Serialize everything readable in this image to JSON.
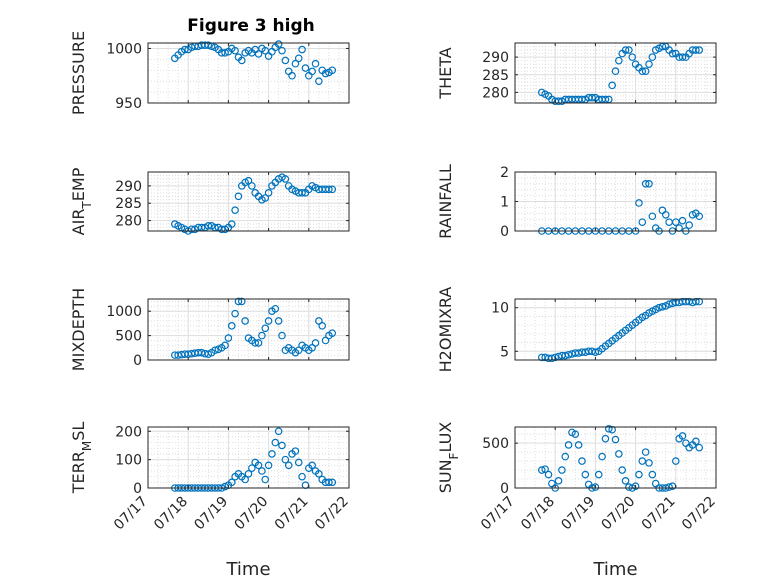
{
  "figure": {
    "title": "Figure 3 high",
    "marker_color": "#0072BD"
  },
  "chart_data": [
    {
      "type": "scatter",
      "ylabel": "PRESSURE",
      "xlabel": "",
      "ylim": [
        950,
        1005
      ],
      "yticks": [
        950,
        1000
      ],
      "xlim": [
        "07/17",
        "07/22"
      ],
      "x": [
        "07/17 16:00",
        "07/17 18:00",
        "07/17 20:00",
        "07/17 22:00",
        "07/18 00:00",
        "07/18 02:00",
        "07/18 04:00",
        "07/18 06:00",
        "07/18 08:00",
        "07/18 10:00",
        "07/18 12:00",
        "07/18 14:00",
        "07/18 16:00",
        "07/18 18:00",
        "07/18 20:00",
        "07/18 22:00",
        "07/19 00:00",
        "07/19 02:00",
        "07/19 04:00",
        "07/19 06:00",
        "07/19 08:00",
        "07/19 10:00",
        "07/19 12:00",
        "07/19 14:00",
        "07/19 16:00",
        "07/19 18:00",
        "07/19 20:00",
        "07/19 22:00",
        "07/20 00:00",
        "07/20 02:00",
        "07/20 04:00",
        "07/20 06:00",
        "07/20 08:00",
        "07/20 10:00",
        "07/20 12:00",
        "07/20 14:00",
        "07/20 16:00",
        "07/20 18:00",
        "07/20 20:00",
        "07/20 22:00",
        "07/21 00:00",
        "07/21 02:00",
        "07/21 04:00",
        "07/21 06:00",
        "07/21 08:00",
        "07/21 10:00",
        "07/21 12:00",
        "07/21 14:00"
      ],
      "y": [
        991,
        994,
        997,
        999,
        999,
        1001,
        1002,
        1002,
        1003,
        1003,
        1003,
        1002,
        1001,
        999,
        996,
        996,
        997,
        1000,
        998,
        992,
        989,
        996,
        998,
        996,
        999,
        995,
        1000,
        998,
        993,
        997,
        1001,
        1004,
        998,
        989,
        979,
        975,
        986,
        991,
        999,
        982,
        975,
        979,
        986,
        970,
        980,
        977,
        978,
        980
      ]
    },
    {
      "type": "scatter",
      "ylabel": "THETA",
      "xlabel": "",
      "ylim": [
        277,
        294
      ],
      "yticks": [
        280,
        285,
        290
      ],
      "xlim": [
        "07/17",
        "07/22"
      ],
      "x": [
        "07/17 16:00",
        "07/17 18:00",
        "07/17 20:00",
        "07/17 22:00",
        "07/18 00:00",
        "07/18 02:00",
        "07/18 04:00",
        "07/18 06:00",
        "07/18 08:00",
        "07/18 10:00",
        "07/18 12:00",
        "07/18 14:00",
        "07/18 16:00",
        "07/18 18:00",
        "07/18 20:00",
        "07/18 22:00",
        "07/19 00:00",
        "07/19 02:00",
        "07/19 04:00",
        "07/19 06:00",
        "07/19 08:00",
        "07/19 10:00",
        "07/19 12:00",
        "07/19 14:00",
        "07/19 16:00",
        "07/19 18:00",
        "07/19 20:00",
        "07/19 22:00",
        "07/20 00:00",
        "07/20 02:00",
        "07/20 04:00",
        "07/20 06:00",
        "07/20 08:00",
        "07/20 10:00",
        "07/20 12:00",
        "07/20 14:00",
        "07/20 16:00",
        "07/20 18:00",
        "07/20 20:00",
        "07/20 22:00",
        "07/21 00:00",
        "07/21 02:00",
        "07/21 04:00",
        "07/21 06:00",
        "07/21 08:00",
        "07/21 10:00",
        "07/21 12:00",
        "07/21 14:00"
      ],
      "y": [
        280,
        279.5,
        279,
        278,
        277.5,
        277.5,
        277.5,
        278,
        278,
        278,
        278,
        278,
        278,
        278,
        278.5,
        278.5,
        278.5,
        278,
        278,
        278,
        278,
        282,
        286,
        289,
        291,
        292,
        292,
        290,
        288,
        287,
        286,
        286,
        288,
        290,
        292,
        292.5,
        293,
        293,
        292,
        291,
        291,
        290,
        290,
        290,
        291,
        292,
        292,
        292
      ]
    },
    {
      "type": "scatter",
      "ylabel": "AIR_TEMP",
      "xlabel": "",
      "ylim": [
        277,
        294
      ],
      "yticks": [
        280,
        285,
        290
      ],
      "xlim": [
        "07/17",
        "07/22"
      ],
      "x": [
        "07/17 16:00",
        "07/17 18:00",
        "07/17 20:00",
        "07/17 22:00",
        "07/18 00:00",
        "07/18 02:00",
        "07/18 04:00",
        "07/18 06:00",
        "07/18 08:00",
        "07/18 10:00",
        "07/18 12:00",
        "07/18 14:00",
        "07/18 16:00",
        "07/18 18:00",
        "07/18 20:00",
        "07/18 22:00",
        "07/19 00:00",
        "07/19 02:00",
        "07/19 04:00",
        "07/19 06:00",
        "07/19 08:00",
        "07/19 10:00",
        "07/19 12:00",
        "07/19 14:00",
        "07/19 16:00",
        "07/19 18:00",
        "07/19 20:00",
        "07/19 22:00",
        "07/20 00:00",
        "07/20 02:00",
        "07/20 04:00",
        "07/20 06:00",
        "07/20 08:00",
        "07/20 10:00",
        "07/20 12:00",
        "07/20 14:00",
        "07/20 16:00",
        "07/20 18:00",
        "07/20 20:00",
        "07/20 22:00",
        "07/21 00:00",
        "07/21 02:00",
        "07/21 04:00",
        "07/21 06:00",
        "07/21 08:00",
        "07/21 10:00",
        "07/21 12:00",
        "07/21 14:00"
      ],
      "y": [
        279,
        278.5,
        278,
        277.5,
        277,
        277.5,
        277.5,
        278,
        278,
        278,
        278.5,
        278.5,
        278,
        278,
        277.5,
        277.5,
        278,
        279,
        283,
        287,
        290,
        291,
        291.5,
        290,
        288,
        287,
        286,
        286.5,
        288,
        290,
        291,
        292,
        292.5,
        292,
        290,
        289,
        288.5,
        288,
        288,
        288,
        289,
        290,
        289.5,
        289,
        289,
        289,
        289,
        289
      ]
    },
    {
      "type": "scatter",
      "ylabel": "RAINFALL",
      "xlabel": "",
      "ylim": [
        0,
        2
      ],
      "yticks": [
        0,
        1,
        2
      ],
      "xlim": [
        "07/17",
        "07/22"
      ],
      "x": [
        "07/17 16:00",
        "07/17 20:00",
        "07/18 00:00",
        "07/18 04:00",
        "07/18 08:00",
        "07/18 12:00",
        "07/18 16:00",
        "07/18 20:00",
        "07/19 00:00",
        "07/19 04:00",
        "07/19 08:00",
        "07/19 12:00",
        "07/19 16:00",
        "07/19 20:00",
        "07/20 00:00",
        "07/20 02:00",
        "07/20 04:00",
        "07/20 06:00",
        "07/20 08:00",
        "07/20 10:00",
        "07/20 12:00",
        "07/20 14:00",
        "07/20 16:00",
        "07/20 18:00",
        "07/20 20:00",
        "07/20 22:00",
        "07/21 00:00",
        "07/21 02:00",
        "07/21 04:00",
        "07/21 06:00",
        "07/21 08:00",
        "07/21 10:00",
        "07/21 12:00",
        "07/21 14:00"
      ],
      "y": [
        0,
        0,
        0,
        0,
        0,
        0,
        0,
        0,
        0,
        0,
        0,
        0,
        0,
        0,
        0,
        0.95,
        0.3,
        1.6,
        1.6,
        0.5,
        0.1,
        0,
        0.7,
        0.55,
        0.3,
        0,
        0.3,
        0.1,
        0.35,
        0,
        0.2,
        0.55,
        0.6,
        0.5
      ]
    },
    {
      "type": "scatter",
      "ylabel": "MIXDEPTH",
      "xlabel": "",
      "ylim": [
        0,
        1250
      ],
      "yticks": [
        0,
        500,
        1000
      ],
      "xlim": [
        "07/17",
        "07/22"
      ],
      "x": [
        "07/17 16:00",
        "07/17 18:00",
        "07/17 20:00",
        "07/17 22:00",
        "07/18 00:00",
        "07/18 02:00",
        "07/18 04:00",
        "07/18 06:00",
        "07/18 08:00",
        "07/18 10:00",
        "07/18 12:00",
        "07/18 14:00",
        "07/18 16:00",
        "07/18 18:00",
        "07/18 20:00",
        "07/18 22:00",
        "07/19 00:00",
        "07/19 02:00",
        "07/19 04:00",
        "07/19 06:00",
        "07/19 08:00",
        "07/19 10:00",
        "07/19 12:00",
        "07/19 14:00",
        "07/19 16:00",
        "07/19 18:00",
        "07/19 20:00",
        "07/19 22:00",
        "07/20 00:00",
        "07/20 02:00",
        "07/20 04:00",
        "07/20 06:00",
        "07/20 08:00",
        "07/20 10:00",
        "07/20 12:00",
        "07/20 14:00",
        "07/20 16:00",
        "07/20 18:00",
        "07/20 20:00",
        "07/20 22:00",
        "07/21 00:00",
        "07/21 02:00",
        "07/21 04:00",
        "07/21 06:00",
        "07/21 08:00",
        "07/21 10:00",
        "07/21 12:00",
        "07/21 14:00"
      ],
      "y": [
        100,
        100,
        110,
        120,
        120,
        130,
        140,
        150,
        150,
        130,
        120,
        150,
        200,
        220,
        250,
        300,
        450,
        700,
        950,
        1200,
        1200,
        800,
        450,
        400,
        350,
        350,
        500,
        650,
        800,
        1000,
        1050,
        800,
        500,
        200,
        250,
        200,
        150,
        200,
        300,
        250,
        200,
        250,
        350,
        800,
        700,
        400,
        500,
        550
      ]
    },
    {
      "type": "scatter",
      "ylabel": "H2OMIXRA",
      "xlabel": "",
      "ylim": [
        4,
        11
      ],
      "yticks": [
        5,
        10
      ],
      "xlim": [
        "07/17",
        "07/22"
      ],
      "x": [
        "07/17 16:00",
        "07/17 18:00",
        "07/17 20:00",
        "07/17 22:00",
        "07/18 00:00",
        "07/18 02:00",
        "07/18 04:00",
        "07/18 06:00",
        "07/18 08:00",
        "07/18 10:00",
        "07/18 12:00",
        "07/18 14:00",
        "07/18 16:00",
        "07/18 18:00",
        "07/18 20:00",
        "07/18 22:00",
        "07/19 00:00",
        "07/19 02:00",
        "07/19 04:00",
        "07/19 06:00",
        "07/19 08:00",
        "07/19 10:00",
        "07/19 12:00",
        "07/19 14:00",
        "07/19 16:00",
        "07/19 18:00",
        "07/19 20:00",
        "07/19 22:00",
        "07/20 00:00",
        "07/20 02:00",
        "07/20 04:00",
        "07/20 06:00",
        "07/20 08:00",
        "07/20 10:00",
        "07/20 12:00",
        "07/20 14:00",
        "07/20 16:00",
        "07/20 18:00",
        "07/20 20:00",
        "07/20 22:00",
        "07/21 00:00",
        "07/21 02:00",
        "07/21 04:00",
        "07/21 06:00",
        "07/21 08:00",
        "07/21 10:00",
        "07/21 12:00",
        "07/21 14:00"
      ],
      "y": [
        4.3,
        4.3,
        4.2,
        4.2,
        4.3,
        4.4,
        4.5,
        4.5,
        4.6,
        4.7,
        4.8,
        4.8,
        4.9,
        4.9,
        5.0,
        5.0,
        4.9,
        5.0,
        5.3,
        5.6,
        5.9,
        6.2,
        6.5,
        6.8,
        7.1,
        7.4,
        7.7,
        8.0,
        8.3,
        8.6,
        8.9,
        9.1,
        9.4,
        9.6,
        9.8,
        10.0,
        10.1,
        10.2,
        10.4,
        10.5,
        10.6,
        10.6,
        10.7,
        10.7,
        10.7,
        10.6,
        10.7,
        10.7
      ]
    },
    {
      "type": "scatter",
      "ylabel": "TERR_MSL",
      "xlabel": "Time",
      "ylim": [
        0,
        215
      ],
      "yticks": [
        0,
        100,
        200
      ],
      "xlim": [
        "07/17",
        "07/22"
      ],
      "xticks": [
        "07/17",
        "07/18",
        "07/19",
        "07/20",
        "07/21",
        "07/22"
      ],
      "x": [
        "07/17 16:00",
        "07/17 18:00",
        "07/17 20:00",
        "07/17 22:00",
        "07/18 00:00",
        "07/18 02:00",
        "07/18 04:00",
        "07/18 06:00",
        "07/18 08:00",
        "07/18 10:00",
        "07/18 12:00",
        "07/18 14:00",
        "07/18 16:00",
        "07/18 18:00",
        "07/18 20:00",
        "07/18 22:00",
        "07/19 00:00",
        "07/19 02:00",
        "07/19 04:00",
        "07/19 06:00",
        "07/19 08:00",
        "07/19 10:00",
        "07/19 12:00",
        "07/19 14:00",
        "07/19 16:00",
        "07/19 18:00",
        "07/19 20:00",
        "07/19 22:00",
        "07/20 00:00",
        "07/20 02:00",
        "07/20 04:00",
        "07/20 06:00",
        "07/20 08:00",
        "07/20 10:00",
        "07/20 12:00",
        "07/20 14:00",
        "07/20 16:00",
        "07/20 18:00",
        "07/20 20:00",
        "07/20 22:00",
        "07/21 00:00",
        "07/21 02:00",
        "07/21 04:00",
        "07/21 06:00",
        "07/21 08:00",
        "07/21 10:00",
        "07/21 12:00",
        "07/21 14:00"
      ],
      "y": [
        0,
        0,
        0,
        0,
        0,
        0,
        0,
        0,
        0,
        0,
        0,
        0,
        0,
        0,
        0,
        5,
        10,
        20,
        40,
        50,
        40,
        30,
        50,
        70,
        90,
        80,
        60,
        30,
        80,
        120,
        160,
        200,
        150,
        100,
        80,
        120,
        130,
        90,
        40,
        10,
        70,
        80,
        60,
        50,
        30,
        20,
        20,
        20
      ]
    },
    {
      "type": "scatter",
      "ylabel": "SUN_FLUX",
      "xlabel": "Time",
      "ylim": [
        0,
        680
      ],
      "yticks": [
        0,
        500
      ],
      "xlim": [
        "07/17",
        "07/22"
      ],
      "xticks": [
        "07/17",
        "07/18",
        "07/19",
        "07/20",
        "07/21",
        "07/22"
      ],
      "x": [
        "07/17 16:00",
        "07/17 18:00",
        "07/17 20:00",
        "07/17 22:00",
        "07/18 00:00",
        "07/18 02:00",
        "07/18 04:00",
        "07/18 06:00",
        "07/18 08:00",
        "07/18 10:00",
        "07/18 12:00",
        "07/18 14:00",
        "07/18 16:00",
        "07/18 18:00",
        "07/18 20:00",
        "07/18 22:00",
        "07/19 00:00",
        "07/19 02:00",
        "07/19 04:00",
        "07/19 06:00",
        "07/19 08:00",
        "07/19 10:00",
        "07/19 12:00",
        "07/19 14:00",
        "07/19 16:00",
        "07/19 18:00",
        "07/19 20:00",
        "07/19 22:00",
        "07/20 00:00",
        "07/20 02:00",
        "07/20 04:00",
        "07/20 06:00",
        "07/20 08:00",
        "07/20 10:00",
        "07/20 12:00",
        "07/20 14:00",
        "07/20 16:00",
        "07/20 18:00",
        "07/20 20:00",
        "07/20 22:00",
        "07/21 00:00",
        "07/21 02:00",
        "07/21 04:00",
        "07/21 06:00",
        "07/21 08:00",
        "07/21 10:00",
        "07/21 12:00",
        "07/21 14:00"
      ],
      "y": [
        200,
        210,
        150,
        50,
        0,
        80,
        200,
        350,
        480,
        620,
        600,
        480,
        300,
        150,
        40,
        0,
        10,
        150,
        350,
        550,
        660,
        650,
        540,
        380,
        200,
        80,
        10,
        0,
        20,
        150,
        300,
        400,
        280,
        150,
        50,
        0,
        0,
        0,
        10,
        20,
        300,
        550,
        580,
        500,
        450,
        480,
        520,
        450
      ]
    }
  ]
}
